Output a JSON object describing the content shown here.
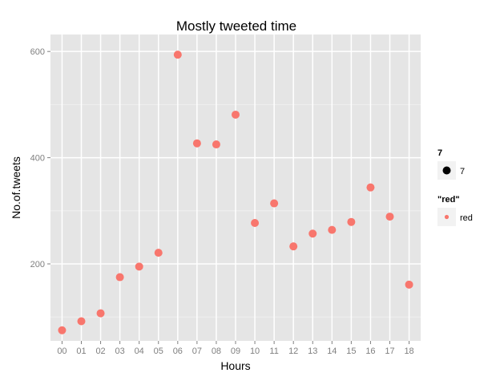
{
  "chart_data": {
    "type": "scatter",
    "title": "Mostly tweeted time",
    "xlabel": "Hours",
    "ylabel": "No.of.tweets",
    "categories": [
      "00",
      "01",
      "02",
      "03",
      "04",
      "05",
      "06",
      "07",
      "08",
      "09",
      "10",
      "11",
      "12",
      "13",
      "14",
      "15",
      "16",
      "17",
      "18"
    ],
    "values": [
      75,
      92,
      107,
      175,
      195,
      221,
      594,
      427,
      425,
      481,
      277,
      314,
      233,
      257,
      264,
      279,
      344,
      289,
      161
    ],
    "ylim": [
      55,
      632
    ],
    "yticks": [
      200,
      400,
      600
    ],
    "grid": true,
    "point_color": "#f8766d",
    "panel_color": "#e5e5e5",
    "legend_position": "right",
    "legends": [
      {
        "title": "7",
        "label": "7",
        "symbol": "size",
        "color": "#000000"
      },
      {
        "title": "\"red\"",
        "label": "red",
        "symbol": "color",
        "color": "#f8766d"
      }
    ]
  }
}
